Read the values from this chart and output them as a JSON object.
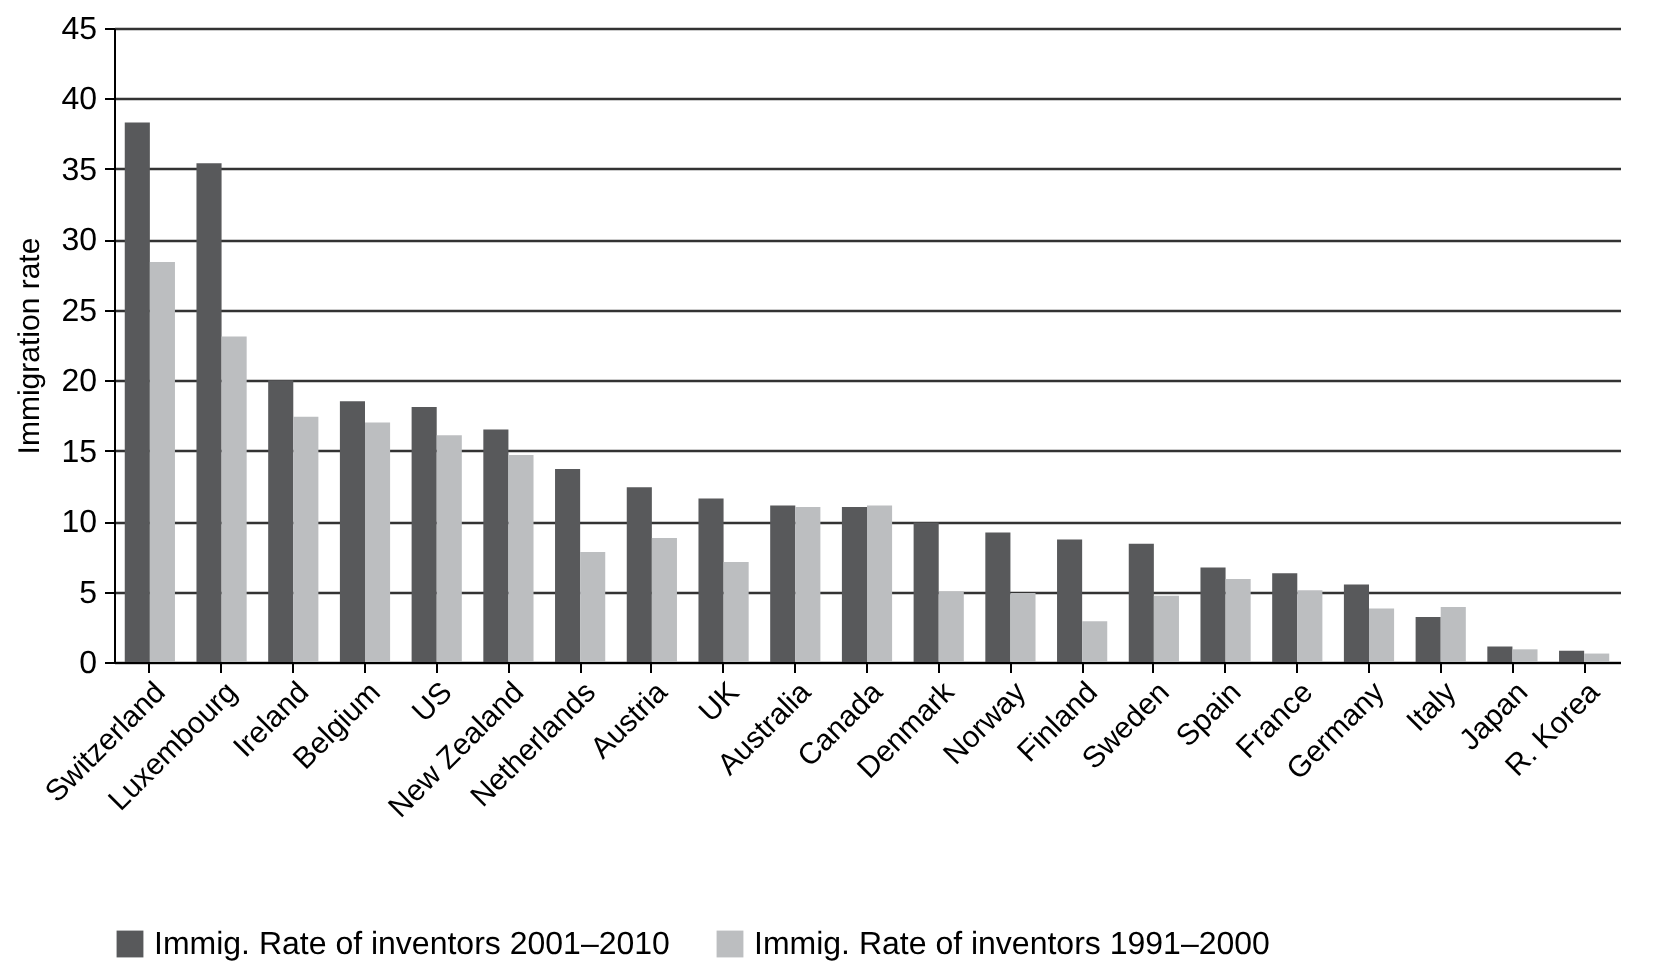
{
  "chart_data": {
    "type": "bar",
    "ylabel": "Immigration rate",
    "categories": [
      "Switzerland",
      "Luxembourg",
      "Ireland",
      "Belgium",
      "US",
      "New Zealand",
      "Netherlands",
      "Austria",
      "UK",
      "Australia",
      "Canada",
      "Denmark",
      "Norway",
      "Finland",
      "Sweden",
      "Spain",
      "France",
      "Germany",
      "Italy",
      "Japan",
      "R. Korea"
    ],
    "series": [
      {
        "name": "Immig. Rate of inventors 2001–2010",
        "color": "#58595b",
        "values": [
          38.3,
          35.4,
          20,
          18.5,
          18.1,
          16.5,
          13.7,
          12.4,
          11.6,
          11.1,
          11,
          9.9,
          9.2,
          8.7,
          8.4,
          6.7,
          6.3,
          5.5,
          3.2,
          1.1,
          0.8
        ]
      },
      {
        "name": "Immig. Rate of inventors 1991–2000",
        "color": "#bcbec0",
        "values": [
          28.4,
          23.1,
          17.4,
          17,
          16.1,
          14.7,
          7.8,
          8.8,
          7.1,
          11,
          11.1,
          5,
          4.9,
          2.9,
          4.7,
          5.9,
          5.1,
          3.8,
          3.9,
          0.9,
          0.6
        ]
      }
    ],
    "ylim": [
      0,
      45
    ],
    "yticks": [
      0,
      5,
      10,
      15,
      20,
      25,
      30,
      35,
      40,
      45
    ],
    "grid": "y",
    "legend": "bottom"
  }
}
